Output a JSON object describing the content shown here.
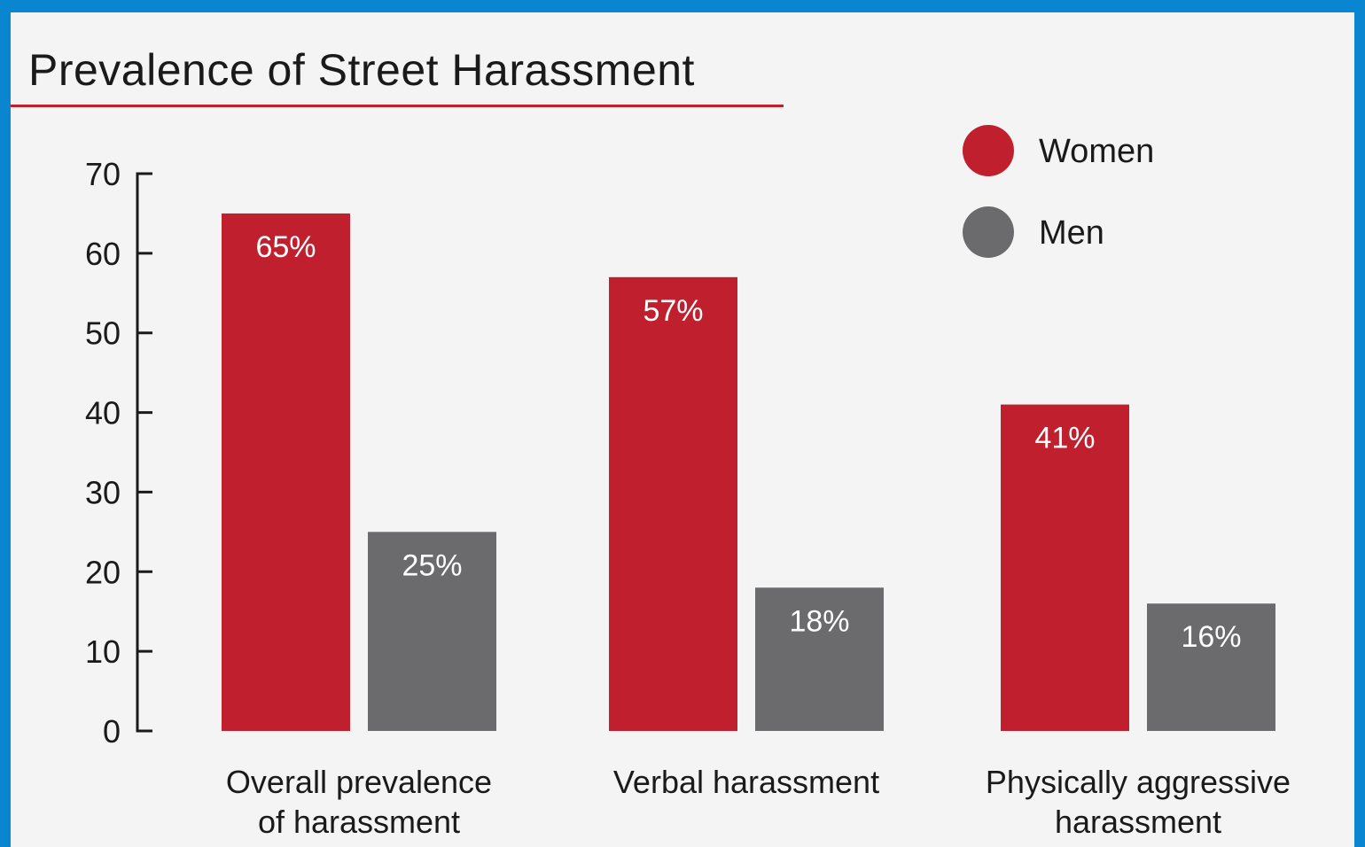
{
  "chart_data": {
    "type": "bar",
    "title": "Prevalence of Street Harassment",
    "xlabel": "",
    "ylabel": "",
    "ylim": [
      0,
      70
    ],
    "yticks": [
      0,
      10,
      20,
      30,
      40,
      50,
      60,
      70
    ],
    "grid": false,
    "legend_position": "top-right",
    "categories": [
      [
        "Overall prevalence",
        "of harassment"
      ],
      [
        "Verbal harassment"
      ],
      [
        "Physically aggressive",
        "harassment"
      ]
    ],
    "series": [
      {
        "name": "Women",
        "color": "#c0202e",
        "values": [
          65,
          57,
          41
        ],
        "labels": [
          "65%",
          "57%",
          "41%"
        ]
      },
      {
        "name": "Men",
        "color": "#6b6b6e",
        "values": [
          25,
          18,
          16
        ],
        "labels": [
          "25%",
          "18%",
          "16%"
        ]
      }
    ]
  }
}
